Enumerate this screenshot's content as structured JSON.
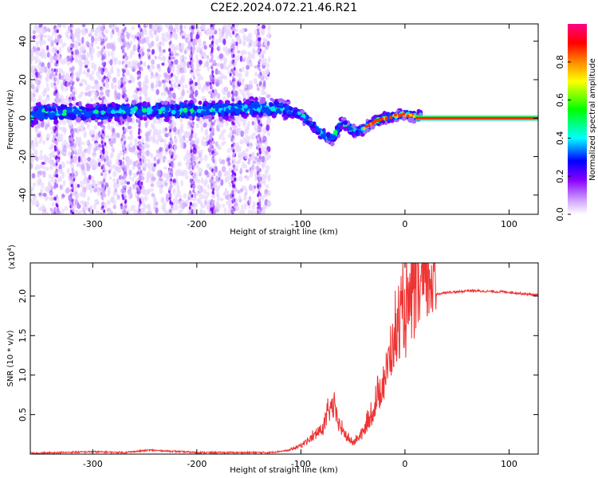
{
  "title": "C2E2.2024.072.21.46.R21",
  "chart_data": [
    {
      "type": "heatmap",
      "xlabel": "Height of straight line (km)",
      "ylabel": "Frequency (Hz)",
      "xlim": [
        -360,
        128
      ],
      "ylim": [
        -50,
        49
      ],
      "xticks": [
        -300,
        -200,
        -100,
        0,
        100
      ],
      "yticks": [
        -40,
        -20,
        0,
        20,
        40
      ],
      "colorbar": {
        "label": "Normalized spectral amplitude",
        "ticks": [
          0.0,
          0.2,
          0.4,
          0.6,
          0.8
        ],
        "range": [
          0,
          1
        ],
        "colors": [
          "#ffffff",
          "#cc99ff",
          "#8800ff",
          "#0000ff",
          "#00ffff",
          "#00ff00",
          "#ffff00",
          "#ff8800",
          "#ff0000",
          "#ff0088"
        ]
      },
      "ridge": [
        {
          "x": -355,
          "y": 3
        },
        {
          "x": -300,
          "y": 3
        },
        {
          "x": -250,
          "y": 4
        },
        {
          "x": -200,
          "y": 4
        },
        {
          "x": -150,
          "y": 5
        },
        {
          "x": -120,
          "y": 5
        },
        {
          "x": -100,
          "y": 2
        },
        {
          "x": -90,
          "y": -3
        },
        {
          "x": -80,
          "y": -8
        },
        {
          "x": -70,
          "y": -11
        },
        {
          "x": -60,
          "y": -2
        },
        {
          "x": -50,
          "y": -7
        },
        {
          "x": -40,
          "y": -6
        },
        {
          "x": -30,
          "y": -2
        },
        {
          "x": -20,
          "y": 0
        },
        {
          "x": -10,
          "y": 1
        },
        {
          "x": 0,
          "y": 2
        },
        {
          "x": 10,
          "y": 1
        },
        {
          "x": 128,
          "y": 0
        }
      ]
    },
    {
      "type": "line",
      "xlabel": "Height of straight line (km)",
      "ylabel": "SNR (10 * v/v)",
      "scale_label": "(x10",
      "scale_exp": "4",
      "scale_close": ")",
      "xlim": [
        -360,
        128
      ],
      "ylim": [
        0,
        2.42
      ],
      "xticks": [
        -300,
        -200,
        -100,
        0,
        100
      ],
      "yticks": [
        0.5,
        1.0,
        1.5,
        2.0
      ],
      "ytick_labels": [
        "0.5",
        "1.0",
        "1.5",
        "2.0"
      ],
      "color": "#ee3333",
      "series": [
        {
          "x": [
            -360,
            -330,
            -300,
            -270,
            -245,
            -230,
            -200,
            -170,
            -130,
            -110,
            -100,
            -90,
            -80,
            -70,
            -60,
            -50,
            -40,
            -30,
            -20,
            -10,
            0,
            10,
            20,
            30,
            40,
            50,
            60,
            80,
            100,
            128
          ],
          "y": [
            0.01,
            0.02,
            0.03,
            0.02,
            0.05,
            0.04,
            0.02,
            0.02,
            0.02,
            0.05,
            0.1,
            0.18,
            0.28,
            0.55,
            0.25,
            0.12,
            0.25,
            0.5,
            0.85,
            1.3,
            1.6,
            1.75,
            1.95,
            2.02,
            2.05,
            2.05,
            2.07,
            2.06,
            2.05,
            2.01
          ]
        }
      ]
    }
  ]
}
